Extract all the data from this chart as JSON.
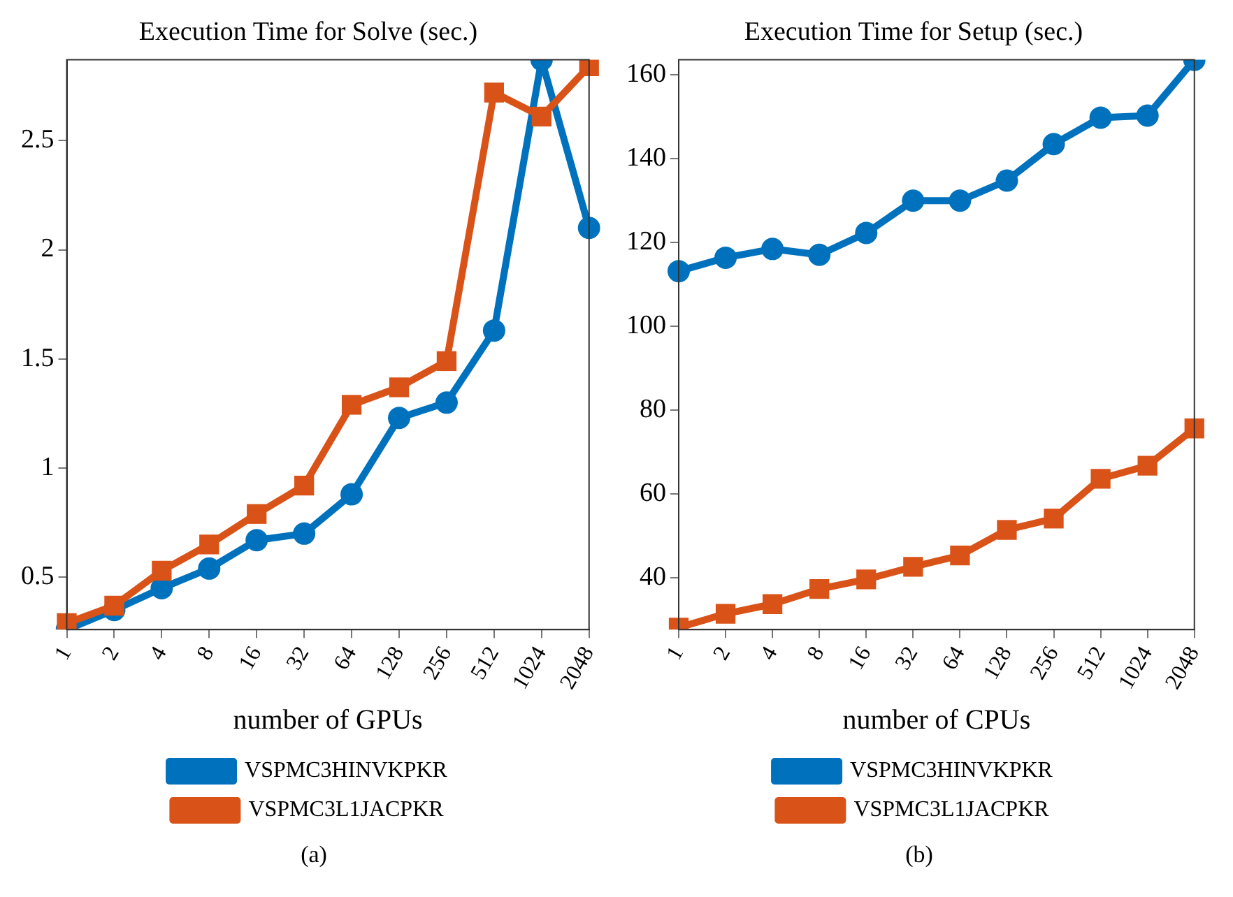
{
  "chart_data": [
    {
      "type": "line",
      "title": "Execution Time for Solve (sec.)",
      "xlabel": "number of GPUs",
      "categories": [
        "1",
        "2",
        "4",
        "8",
        "16",
        "32",
        "64",
        "128",
        "256",
        "512",
        "1024",
        "2048"
      ],
      "series": [
        {
          "name": "VSPMC3HINVKPKR",
          "color": "#0072bd",
          "marker": "circle",
          "values": [
            0.26,
            0.35,
            0.45,
            0.54,
            0.67,
            0.7,
            0.88,
            1.23,
            1.3,
            1.63,
            2.87,
            2.1
          ]
        },
        {
          "name": "VSPMC3L1JACPKR",
          "color": "#d95319",
          "marker": "square",
          "values": [
            0.29,
            0.37,
            0.53,
            0.65,
            0.79,
            0.92,
            1.29,
            1.37,
            1.49,
            2.72,
            2.61,
            2.84
          ]
        }
      ],
      "ylim": [
        0.26,
        2.87
      ],
      "yticks": [
        0.5,
        1,
        1.5,
        2,
        2.5
      ],
      "grid": false,
      "legend": "bottom",
      "line_style": "solid",
      "annotations": [
        "(a)"
      ]
    },
    {
      "type": "line",
      "title": "Execution Time for Setup (sec.)",
      "xlabel": "number of CPUs",
      "categories": [
        "1",
        "2",
        "4",
        "8",
        "16",
        "32",
        "64",
        "128",
        "256",
        "512",
        "1024",
        "2048"
      ],
      "series": [
        {
          "name": "VSPMC3HINVKPKR",
          "color": "#0072bd",
          "marker": "circle",
          "values": [
            113.1,
            116.3,
            118.4,
            117.0,
            122.2,
            129.9,
            129.9,
            134.7,
            143.4,
            149.7,
            150.2,
            163.5
          ]
        },
        {
          "name": "VSPMC3L1JACPKR",
          "color": "#d95319",
          "marker": "square",
          "values": [
            28.1,
            31.4,
            33.7,
            37.3,
            39.6,
            42.6,
            45.3,
            51.4,
            54.1,
            63.6,
            66.7,
            75.6
          ]
        }
      ],
      "ylim": [
        27.6,
        163.5
      ],
      "yticks": [
        40,
        60,
        80,
        100,
        120,
        140,
        160
      ],
      "grid": false,
      "legend": "bottom",
      "line_style": "solid",
      "annotations": [
        "(b)"
      ]
    }
  ]
}
